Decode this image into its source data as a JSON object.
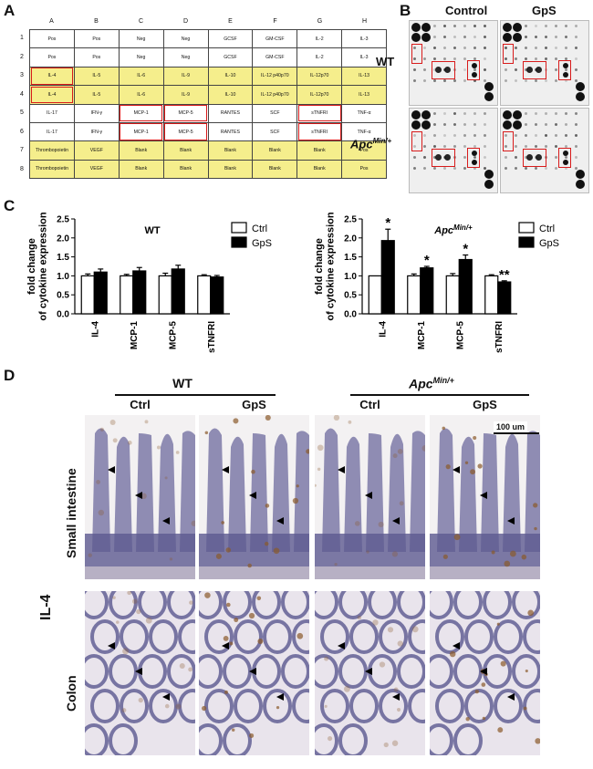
{
  "panels": {
    "a": "A",
    "b": "B",
    "c": "C",
    "d": "D"
  },
  "array": {
    "columns": [
      "A",
      "B",
      "C",
      "D",
      "E",
      "F",
      "G",
      "H"
    ],
    "rows": [
      {
        "n": "1",
        "cells": [
          "Pos",
          "Pos",
          "Neg",
          "Neg",
          "GCSF",
          "GM-CSF",
          "IL-2",
          "IL-3"
        ],
        "yellow": false
      },
      {
        "n": "2",
        "cells": [
          "Pos",
          "Pos",
          "Neg",
          "Neg",
          "GCSF",
          "GM-CSF",
          "IL-2",
          "IL-3"
        ],
        "yellow": false
      },
      {
        "n": "3",
        "cells": [
          "IL-4",
          "IL-5",
          "IL-6",
          "IL-9",
          "IL-10",
          "IL-12 p40p70",
          "IL-12p70",
          "IL-13"
        ],
        "yellow": true
      },
      {
        "n": "4",
        "cells": [
          "IL-4",
          "IL-5",
          "IL-6",
          "IL-9",
          "IL-10",
          "IL-12 p40p70",
          "IL-12p70",
          "IL-13"
        ],
        "yellow": true
      },
      {
        "n": "5",
        "cells": [
          "IL-17",
          "IFN-γ",
          "MCP-1",
          "MCP-5",
          "RANTES",
          "SCF",
          "sTNFRI",
          "TNF-α"
        ],
        "yellow": false
      },
      {
        "n": "6",
        "cells": [
          "IL-17",
          "IFN-γ",
          "MCP-1",
          "MCP-5",
          "RANTES",
          "SCF",
          "sTNFRI",
          "TNF-α"
        ],
        "yellow": false
      },
      {
        "n": "7",
        "cells": [
          "Thrombopoietin",
          "VEGF",
          "Blank",
          "Blank",
          "Blank",
          "Blank",
          "Blank",
          "Pos"
        ],
        "yellow": true
      },
      {
        "n": "8",
        "cells": [
          "Thrombopoietin",
          "VEGF",
          "Blank",
          "Blank",
          "Blank",
          "Blank",
          "Blank",
          "Pos"
        ],
        "yellow": true
      }
    ]
  },
  "membranes": {
    "col_labels": [
      "Control",
      "GpS"
    ],
    "row_labels": [
      "WT",
      "Apc",
      "Min/+"
    ]
  },
  "chart_wt": {
    "type": "bar",
    "title": "WT",
    "ylabel": "fold change of cytokine expression",
    "ylim": [
      0,
      2.5
    ],
    "yticks": [
      "0.0",
      "0.5",
      "1.0",
      "1.5",
      "2.0",
      "2.5"
    ],
    "categories": [
      "IL-4",
      "MCP-1",
      "MCP-5",
      "sTNFRI"
    ],
    "series": [
      {
        "name": "Ctrl",
        "values": [
          1.0,
          1.0,
          1.0,
          1.0
        ],
        "errors": [
          0.05,
          0.04,
          0.07,
          0.03
        ],
        "color": "#ffffff"
      },
      {
        "name": "GpS",
        "values": [
          1.1,
          1.13,
          1.18,
          0.97
        ],
        "errors": [
          0.08,
          0.09,
          0.1,
          0.04
        ],
        "color": "#000000"
      }
    ],
    "annotations": [
      "",
      "",
      "",
      ""
    ]
  },
  "chart_apc": {
    "type": "bar",
    "title": "Apc",
    "title_sup": "Min/+",
    "ylabel": "fold change of cytokine expression",
    "ylim": [
      0,
      2.5
    ],
    "yticks": [
      "0.0",
      "0.5",
      "1.0",
      "1.5",
      "2.0",
      "2.5"
    ],
    "categories": [
      "IL-4",
      "MCP-1",
      "MCP-5",
      "sTNFRI"
    ],
    "series": [
      {
        "name": "Ctrl",
        "values": [
          1.0,
          1.0,
          1.0,
          1.0
        ],
        "errors": [
          0.0,
          0.05,
          0.06,
          0.03
        ],
        "color": "#ffffff"
      },
      {
        "name": "GpS",
        "values": [
          1.93,
          1.21,
          1.43,
          0.84
        ],
        "errors": [
          0.3,
          0.04,
          0.12,
          0.03
        ],
        "color": "#000000"
      }
    ],
    "annotations": [
      "*",
      "*",
      "*",
      "**"
    ]
  },
  "histology": {
    "groups": [
      "WT",
      "Apc",
      "Min/+"
    ],
    "columns": [
      "Ctrl",
      "GpS",
      "Ctrl",
      "GpS"
    ],
    "rows": [
      "Small intestine",
      "Colon"
    ],
    "marker": "IL-4",
    "scale_bar": "100 um"
  }
}
